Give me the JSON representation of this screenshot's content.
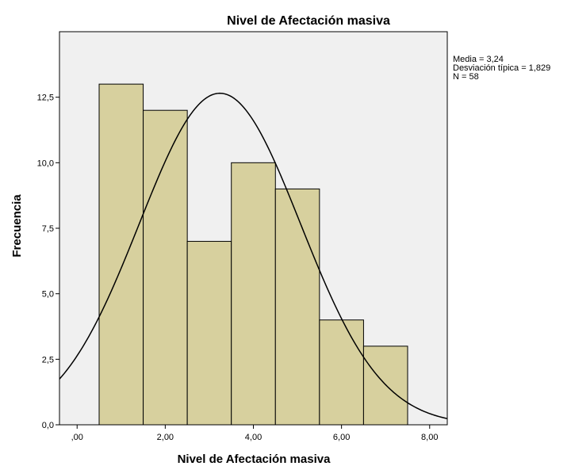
{
  "chart_data": {
    "type": "histogram",
    "title": "Nivel de Afectación masiva",
    "xlabel": "Nivel de Afectación masiva",
    "ylabel": "Frecuencia",
    "xlim": [
      -0.4,
      8.4
    ],
    "ylim": [
      0,
      15
    ],
    "x_ticks": [
      0,
      2,
      4,
      6,
      8
    ],
    "x_tick_labels": [
      ",00",
      "2,00",
      "4,00",
      "6,00",
      "8,00"
    ],
    "y_ticks": [
      0,
      2.5,
      5,
      7.5,
      10,
      12.5
    ],
    "y_tick_labels": [
      "0,0",
      "2,5",
      "5,0",
      "7,5",
      "10,0",
      "12,5"
    ],
    "bins": [
      {
        "from": 0.5,
        "to": 1.5,
        "count": 13
      },
      {
        "from": 1.5,
        "to": 2.5,
        "count": 12
      },
      {
        "from": 2.5,
        "to": 3.5,
        "count": 7
      },
      {
        "from": 3.5,
        "to": 4.5,
        "count": 10
      },
      {
        "from": 4.5,
        "to": 5.5,
        "count": 9
      },
      {
        "from": 5.5,
        "to": 6.5,
        "count": 4
      },
      {
        "from": 6.5,
        "to": 7.5,
        "count": 3
      }
    ],
    "normal_curve": {
      "mean": 3.24,
      "sd": 1.829,
      "n": 58,
      "bin_width": 1
    },
    "stats_lines": [
      "Media = 3,24",
      "Desviación típica = 1,829",
      "N = 58"
    ],
    "grid": false,
    "colors": {
      "bar_fill": "#d7d09e",
      "bar_stroke": "#000000",
      "plot_bg": "#f0f0f0",
      "curve": "#000000"
    }
  }
}
